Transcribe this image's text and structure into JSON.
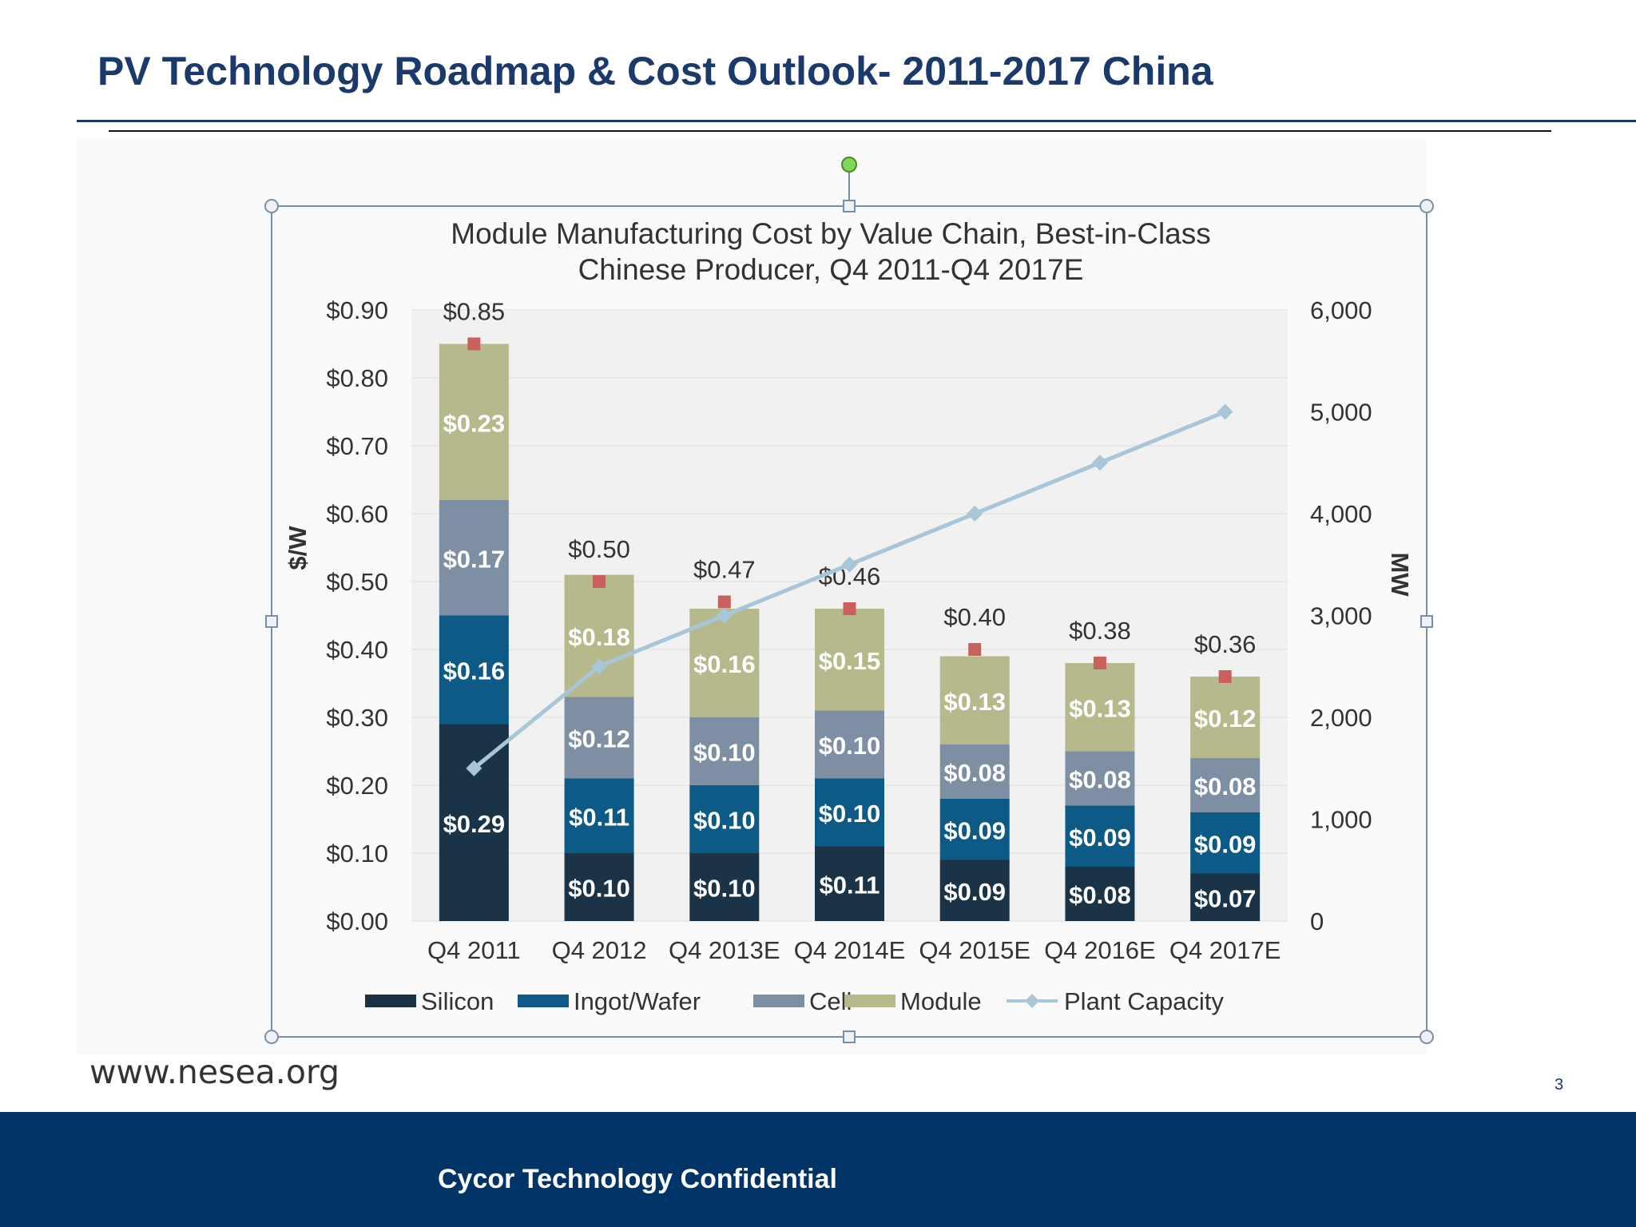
{
  "page": {
    "title": "PV Technology Roadmap & Cost Outlook- 2011-2017 China",
    "source": "www.nesea.org",
    "page_number": "3",
    "footer": "Cycor Technology Confidential"
  },
  "chart_data": {
    "type": "bar",
    "stacked": true,
    "title": "Module Manufacturing Cost by Value Chain, Best-in-Class Chinese Producer, Q4 2011-Q4 2017E",
    "title_lines": [
      "Module Manufacturing Cost by Value Chain, Best-in-Class",
      "Chinese Producer, Q4 2011-Q4 2017E"
    ],
    "categories": [
      "Q4 2011",
      "Q4 2012",
      "Q4 2013E",
      "Q4 2014E",
      "Q4 2015E",
      "Q4 2016E",
      "Q4 2017E"
    ],
    "ylabel": "$/W",
    "y2label": "MW",
    "ylim": [
      0,
      0.9
    ],
    "y2lim": [
      0,
      6000
    ],
    "yticks": [
      "$0.00",
      "$0.10",
      "$0.20",
      "$0.30",
      "$0.40",
      "$0.50",
      "$0.60",
      "$0.70",
      "$0.80",
      "$0.90"
    ],
    "y2ticks": [
      "0",
      "1,000",
      "2,000",
      "3,000",
      "4,000",
      "5,000",
      "6,000"
    ],
    "series": [
      {
        "name": "Silicon",
        "color": "#1b3347",
        "values": [
          0.29,
          0.1,
          0.1,
          0.11,
          0.09,
          0.08,
          0.07
        ],
        "labels": [
          "$0.29",
          "$0.10",
          "$0.10",
          "$0.11",
          "$0.09",
          "$0.08",
          "$0.07"
        ]
      },
      {
        "name": "Ingot/Wafer",
        "color": "#0e5a86",
        "values": [
          0.16,
          0.11,
          0.1,
          0.1,
          0.09,
          0.09,
          0.09
        ],
        "labels": [
          "$0.16",
          "$0.11",
          "$0.10",
          "$0.10",
          "$0.09",
          "$0.09",
          "$0.09"
        ]
      },
      {
        "name": "Cell",
        "color": "#7f8fa3",
        "values": [
          0.17,
          0.12,
          0.1,
          0.1,
          0.08,
          0.08,
          0.08
        ],
        "labels": [
          "$0.17",
          "$0.12",
          "$0.10",
          "$0.10",
          "$0.08",
          "$0.08",
          "$0.08"
        ]
      },
      {
        "name": "Module",
        "color": "#b5b98c",
        "values": [
          0.23,
          0.18,
          0.16,
          0.15,
          0.13,
          0.13,
          0.12
        ],
        "labels": [
          "$0.23",
          "$0.18",
          "$0.16",
          "$0.15",
          "$0.13",
          "$0.13",
          "$0.12"
        ]
      }
    ],
    "totals": [
      0.85,
      0.5,
      0.47,
      0.46,
      0.4,
      0.38,
      0.36
    ],
    "total_labels": [
      "$0.85",
      "$0.50",
      "$0.47",
      "$0.46",
      "$0.40",
      "$0.38",
      "$0.36"
    ],
    "line_series": {
      "name": "Plant Capacity",
      "axis": "right",
      "color": "#a9c6d8",
      "values": [
        1500,
        2500,
        3000,
        3500,
        4000,
        4500,
        5000
      ]
    },
    "total_marker_color": "#c9605e",
    "legend": [
      "Silicon",
      "Ingot/Wafer",
      "Cell",
      "Module",
      "Plant Capacity"
    ],
    "legend_position": "bottom",
    "grid": true
  }
}
